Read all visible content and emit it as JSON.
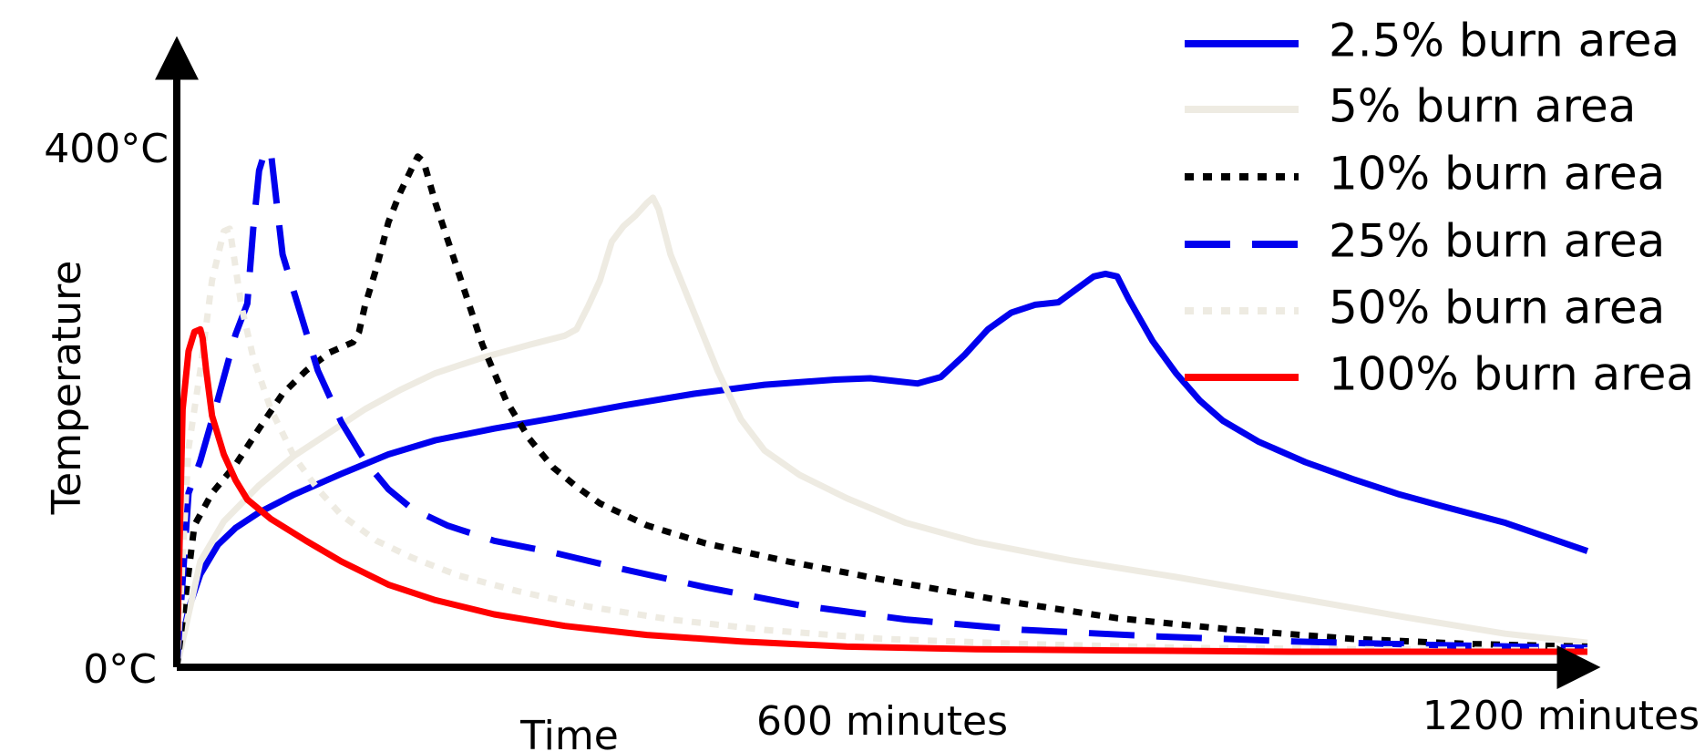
{
  "chart_data": {
    "type": "line",
    "title": "",
    "xlabel": "Time",
    "ylabel": "Temperature",
    "xlim": [
      0,
      1200
    ],
    "ylim": [
      0,
      400
    ],
    "x_ticks": [
      {
        "value": 600,
        "label": "600 minutes"
      },
      {
        "value": 1200,
        "label": "1200 minutes"
      }
    ],
    "y_ticks": [
      {
        "value": 0,
        "label": "0°C"
      },
      {
        "value": 400,
        "label": "400°C"
      }
    ],
    "grid": false,
    "legend_position": "top-right",
    "series": [
      {
        "name": "2.5% burn area",
        "color": "#0000ee",
        "style": "solid",
        "points": [
          [
            0,
            0
          ],
          [
            10,
            45
          ],
          [
            20,
            72
          ],
          [
            35,
            95
          ],
          [
            50,
            108
          ],
          [
            70,
            120
          ],
          [
            100,
            134
          ],
          [
            140,
            150
          ],
          [
            180,
            165
          ],
          [
            220,
            176
          ],
          [
            270,
            185
          ],
          [
            320,
            193
          ],
          [
            380,
            203
          ],
          [
            440,
            212
          ],
          [
            500,
            219
          ],
          [
            560,
            223
          ],
          [
            590,
            224
          ],
          [
            610,
            222
          ],
          [
            630,
            220
          ],
          [
            650,
            225
          ],
          [
            670,
            242
          ],
          [
            690,
            262
          ],
          [
            710,
            275
          ],
          [
            730,
            281
          ],
          [
            750,
            283
          ],
          [
            765,
            293
          ],
          [
            780,
            303
          ],
          [
            790,
            305
          ],
          [
            800,
            303
          ],
          [
            810,
            285
          ],
          [
            830,
            253
          ],
          [
            850,
            228
          ],
          [
            870,
            207
          ],
          [
            890,
            191
          ],
          [
            920,
            175
          ],
          [
            960,
            159
          ],
          [
            1000,
            146
          ],
          [
            1040,
            134
          ],
          [
            1080,
            124
          ],
          [
            1130,
            112
          ],
          [
            1200,
            90
          ]
        ]
      },
      {
        "name": "5% burn area",
        "color": "#eeebe2",
        "style": "solid",
        "points": [
          [
            0,
            0
          ],
          [
            20,
            82
          ],
          [
            40,
            113
          ],
          [
            70,
            141
          ],
          [
            100,
            164
          ],
          [
            130,
            182
          ],
          [
            160,
            200
          ],
          [
            190,
            215
          ],
          [
            220,
            228
          ],
          [
            260,
            240
          ],
          [
            300,
            250
          ],
          [
            330,
            257
          ],
          [
            340,
            262
          ],
          [
            350,
            280
          ],
          [
            360,
            300
          ],
          [
            370,
            330
          ],
          [
            380,
            342
          ],
          [
            390,
            350
          ],
          [
            400,
            360
          ],
          [
            405,
            364
          ],
          [
            410,
            355
          ],
          [
            420,
            320
          ],
          [
            440,
            275
          ],
          [
            460,
            230
          ],
          [
            480,
            192
          ],
          [
            500,
            168
          ],
          [
            530,
            149
          ],
          [
            570,
            131
          ],
          [
            620,
            112
          ],
          [
            680,
            97
          ],
          [
            760,
            83
          ],
          [
            850,
            70
          ],
          [
            950,
            54
          ],
          [
            1050,
            38
          ],
          [
            1130,
            26
          ],
          [
            1200,
            19
          ]
        ]
      },
      {
        "name": "10% burn area",
        "color": "#000000",
        "style": "dotted",
        "points": [
          [
            0,
            0
          ],
          [
            15,
            110
          ],
          [
            30,
            135
          ],
          [
            50,
            157
          ],
          [
            70,
            185
          ],
          [
            90,
            212
          ],
          [
            110,
            230
          ],
          [
            130,
            244
          ],
          [
            150,
            252
          ],
          [
            155,
            260
          ],
          [
            160,
            280
          ],
          [
            170,
            310
          ],
          [
            180,
            345
          ],
          [
            190,
            368
          ],
          [
            200,
            387
          ],
          [
            205,
            396
          ],
          [
            210,
            392
          ],
          [
            220,
            360
          ],
          [
            240,
            305
          ],
          [
            260,
            250
          ],
          [
            280,
            207
          ],
          [
            300,
            177
          ],
          [
            320,
            155
          ],
          [
            340,
            140
          ],
          [
            360,
            127
          ],
          [
            400,
            110
          ],
          [
            450,
            96
          ],
          [
            520,
            82
          ],
          [
            600,
            68
          ],
          [
            700,
            52
          ],
          [
            800,
            38
          ],
          [
            900,
            29
          ],
          [
            1000,
            22
          ],
          [
            1100,
            18
          ],
          [
            1200,
            16
          ]
        ]
      },
      {
        "name": "25% burn area",
        "color": "#0000ee",
        "style": "dashed",
        "points": [
          [
            0,
            0
          ],
          [
            10,
            135
          ],
          [
            20,
            160
          ],
          [
            35,
            208
          ],
          [
            50,
            258
          ],
          [
            60,
            282
          ],
          [
            65,
            340
          ],
          [
            70,
            385
          ],
          [
            75,
            400
          ],
          [
            80,
            400
          ],
          [
            85,
            360
          ],
          [
            90,
            320
          ],
          [
            100,
            290
          ],
          [
            110,
            260
          ],
          [
            120,
            230
          ],
          [
            140,
            190
          ],
          [
            160,
            160
          ],
          [
            180,
            138
          ],
          [
            200,
            123
          ],
          [
            230,
            110
          ],
          [
            270,
            98
          ],
          [
            320,
            89
          ],
          [
            380,
            76
          ],
          [
            450,
            62
          ],
          [
            530,
            48
          ],
          [
            620,
            37
          ],
          [
            720,
            29
          ],
          [
            830,
            24
          ],
          [
            950,
            20
          ],
          [
            1080,
            17
          ],
          [
            1200,
            15
          ]
        ]
      },
      {
        "name": "50% burn area",
        "color": "#eeebe2",
        "style": "dotted",
        "points": [
          [
            0,
            0
          ],
          [
            10,
            170
          ],
          [
            20,
            230
          ],
          [
            30,
            300
          ],
          [
            40,
            338
          ],
          [
            45,
            340
          ],
          [
            50,
            310
          ],
          [
            55,
            280
          ],
          [
            65,
            240
          ],
          [
            80,
            200
          ],
          [
            100,
            163
          ],
          [
            120,
            138
          ],
          [
            140,
            118
          ],
          [
            170,
            98
          ],
          [
            200,
            85
          ],
          [
            240,
            71
          ],
          [
            290,
            59
          ],
          [
            350,
            47
          ],
          [
            420,
            37
          ],
          [
            500,
            29
          ],
          [
            600,
            22
          ],
          [
            720,
            18
          ],
          [
            860,
            15
          ],
          [
            1000,
            14
          ],
          [
            1200,
            13
          ]
        ]
      },
      {
        "name": "100% burn area",
        "color": "#ff0000",
        "style": "solid",
        "points": [
          [
            0,
            0
          ],
          [
            5,
            200
          ],
          [
            10,
            245
          ],
          [
            15,
            260
          ],
          [
            20,
            262
          ],
          [
            22,
            255
          ],
          [
            25,
            230
          ],
          [
            30,
            195
          ],
          [
            40,
            165
          ],
          [
            50,
            145
          ],
          [
            60,
            130
          ],
          [
            80,
            115
          ],
          [
            110,
            98
          ],
          [
            140,
            82
          ],
          [
            180,
            64
          ],
          [
            220,
            52
          ],
          [
            270,
            41
          ],
          [
            330,
            32
          ],
          [
            400,
            25
          ],
          [
            480,
            20
          ],
          [
            570,
            16
          ],
          [
            680,
            14
          ],
          [
            800,
            13
          ],
          [
            950,
            12
          ],
          [
            1100,
            12
          ],
          [
            1200,
            12
          ]
        ]
      }
    ]
  }
}
